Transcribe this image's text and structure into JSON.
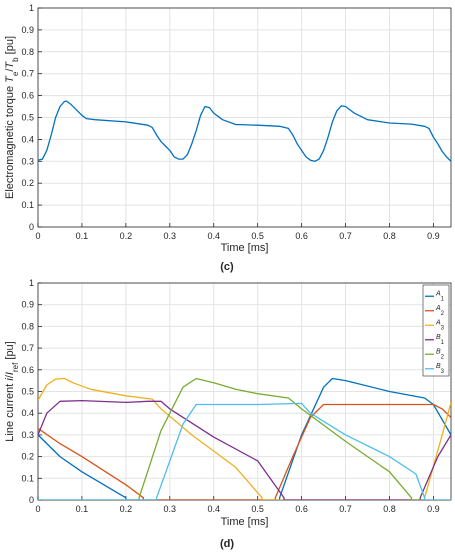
{
  "charts": [
    {
      "id": "c",
      "caption": "(c)",
      "xlabel": "Time [ms]",
      "ylabel": {
        "parts": [
          {
            "t": "Electromagnetic torque ",
            "i": false,
            "s": ""
          },
          {
            "t": "T",
            "i": true,
            "s": ""
          },
          {
            "t": "e",
            "i": false,
            "s": "sub"
          },
          {
            "t": "/",
            "i": false,
            "s": ""
          },
          {
            "t": "T",
            "i": true,
            "s": ""
          },
          {
            "t": "b",
            "i": false,
            "s": "sub"
          },
          {
            "t": " [pu]",
            "i": false,
            "s": ""
          }
        ]
      }
    },
    {
      "id": "d",
      "caption": "(d)",
      "xlabel": "Time [ms]",
      "ylabel": {
        "parts": [
          {
            "t": "Line current ",
            "i": false,
            "s": ""
          },
          {
            "t": "i",
            "i": true,
            "s": ""
          },
          {
            "t": "/",
            "i": false,
            "s": ""
          },
          {
            "t": "I",
            "i": true,
            "s": ""
          },
          {
            "t": "ref",
            "i": false,
            "s": "sub"
          },
          {
            "t": " [pu]",
            "i": false,
            "s": ""
          }
        ]
      }
    }
  ],
  "chart_data": [
    {
      "type": "line",
      "xlim": [
        0,
        0.94
      ],
      "ylim": [
        0,
        1
      ],
      "xticks": [
        0,
        0.1,
        0.2,
        0.3,
        0.4,
        0.5,
        0.6,
        0.7,
        0.8,
        0.9
      ],
      "yticks": [
        0,
        0.1,
        0.2,
        0.3,
        0.4,
        0.5,
        0.6,
        0.7,
        0.8,
        0.9,
        1
      ],
      "grid": true,
      "series": [
        {
          "color": "#0072BD",
          "x": [
            0,
            0.01,
            0.02,
            0.03,
            0.04,
            0.05,
            0.06,
            0.065,
            0.075,
            0.09,
            0.1,
            0.11,
            0.13,
            0.2,
            0.25,
            0.26,
            0.27,
            0.28,
            0.29,
            0.3,
            0.31,
            0.32,
            0.33,
            0.34,
            0.35,
            0.36,
            0.37,
            0.38,
            0.39,
            0.4,
            0.42,
            0.45,
            0.5,
            0.55,
            0.57,
            0.58,
            0.59,
            0.6,
            0.61,
            0.62,
            0.63,
            0.64,
            0.65,
            0.66,
            0.67,
            0.68,
            0.69,
            0.7,
            0.72,
            0.75,
            0.8,
            0.85,
            0.88,
            0.89,
            0.9,
            0.91,
            0.92,
            0.93,
            0.94
          ],
          "y": [
            0.305,
            0.31,
            0.35,
            0.42,
            0.5,
            0.55,
            0.573,
            0.575,
            0.56,
            0.53,
            0.51,
            0.495,
            0.49,
            0.48,
            0.465,
            0.455,
            0.42,
            0.39,
            0.37,
            0.35,
            0.32,
            0.31,
            0.31,
            0.33,
            0.38,
            0.44,
            0.51,
            0.55,
            0.545,
            0.52,
            0.49,
            0.468,
            0.465,
            0.46,
            0.45,
            0.42,
            0.38,
            0.35,
            0.32,
            0.305,
            0.3,
            0.31,
            0.35,
            0.41,
            0.48,
            0.53,
            0.553,
            0.55,
            0.52,
            0.49,
            0.475,
            0.47,
            0.46,
            0.45,
            0.41,
            0.38,
            0.345,
            0.32,
            0.3
          ]
        }
      ]
    },
    {
      "type": "line",
      "xlim": [
        0,
        0.94
      ],
      "ylim": [
        0,
        1
      ],
      "xticks": [
        0,
        0.1,
        0.2,
        0.3,
        0.4,
        0.5,
        0.6,
        0.7,
        0.8,
        0.9
      ],
      "yticks": [
        0,
        0.1,
        0.2,
        0.3,
        0.4,
        0.5,
        0.6,
        0.7,
        0.8,
        0.9,
        1
      ],
      "grid": true,
      "legend": "top-right",
      "series": [
        {
          "name": "A1",
          "color": "#0072BD",
          "x": [
            0,
            0.05,
            0.1,
            0.15,
            0.2,
            0.2,
            0.55,
            0.55,
            0.6,
            0.65,
            0.67,
            0.7,
            0.8,
            0.88,
            0.9,
            0.94
          ],
          "y": [
            0.3,
            0.2,
            0.13,
            0.07,
            0.01,
            0,
            0,
            0.01,
            0.3,
            0.52,
            0.56,
            0.55,
            0.5,
            0.47,
            0.44,
            0.3
          ]
        },
        {
          "name": "A2",
          "color": "#D95319",
          "x": [
            0,
            0.05,
            0.1,
            0.2,
            0.24,
            0.24,
            0.54,
            0.54,
            0.58,
            0.62,
            0.65,
            0.7,
            0.8,
            0.87,
            0.9,
            0.92,
            0.94
          ],
          "y": [
            0.33,
            0.26,
            0.2,
            0.07,
            0.01,
            0,
            0,
            0.01,
            0.2,
            0.38,
            0.44,
            0.44,
            0.44,
            0.44,
            0.44,
            0.42,
            0.38
          ]
        },
        {
          "name": "A3",
          "color": "#EDB120",
          "x": [
            0,
            0.02,
            0.04,
            0.06,
            0.08,
            0.12,
            0.2,
            0.26,
            0.28,
            0.35,
            0.45,
            0.51,
            0.51,
            0.88,
            0.88,
            0.92,
            0.94
          ],
          "y": [
            0.46,
            0.53,
            0.557,
            0.56,
            0.54,
            0.51,
            0.48,
            0.465,
            0.42,
            0.3,
            0.15,
            0.01,
            0,
            0,
            0.01,
            0.3,
            0.45
          ]
        },
        {
          "name": "B1",
          "color": "#7E2F8E",
          "x": [
            0,
            0.02,
            0.05,
            0.1,
            0.2,
            0.25,
            0.28,
            0.3,
            0.4,
            0.5,
            0.56,
            0.56,
            0.87,
            0.87,
            0.91,
            0.94
          ],
          "y": [
            0.3,
            0.4,
            0.455,
            0.458,
            0.45,
            0.455,
            0.455,
            0.42,
            0.29,
            0.18,
            0.01,
            0,
            0,
            0.01,
            0.2,
            0.3
          ]
        },
        {
          "name": "B2",
          "color": "#77AC30",
          "x": [
            0,
            0.23,
            0.23,
            0.28,
            0.33,
            0.36,
            0.4,
            0.45,
            0.5,
            0.57,
            0.6,
            0.7,
            0.8,
            0.85,
            0.85,
            0.94
          ],
          "y": [
            0,
            0,
            0.01,
            0.32,
            0.52,
            0.56,
            0.54,
            0.51,
            0.49,
            0.47,
            0.42,
            0.27,
            0.13,
            0.01,
            0,
            0
          ]
        },
        {
          "name": "B3",
          "color": "#4DBEEE",
          "x": [
            0,
            0.27,
            0.27,
            0.33,
            0.36,
            0.4,
            0.5,
            0.6,
            0.62,
            0.7,
            0.8,
            0.86,
            0.88,
            0.88,
            0.94
          ],
          "y": [
            0,
            0,
            0.01,
            0.35,
            0.44,
            0.44,
            0.44,
            0.445,
            0.4,
            0.3,
            0.2,
            0.12,
            0.01,
            0,
            0
          ]
        }
      ]
    }
  ]
}
